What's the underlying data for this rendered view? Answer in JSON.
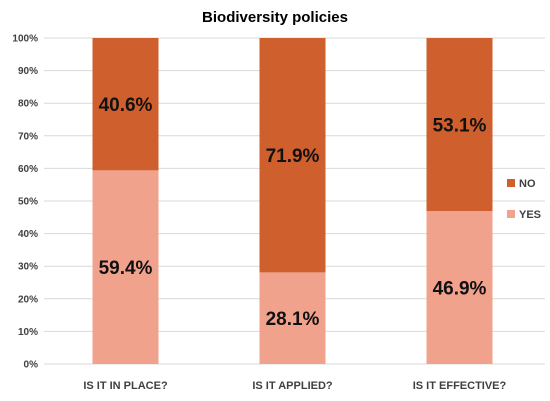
{
  "chart_data": {
    "type": "bar",
    "stacked": true,
    "title": "Biodiversity policies",
    "categories": [
      "IS IT IN PLACE?",
      "IS IT APPLIED?",
      "IS IT EFFECTIVE?"
    ],
    "series": [
      {
        "name": "YES",
        "values": [
          59.4,
          28.1,
          46.9
        ],
        "color": "#f0a28c"
      },
      {
        "name": "NO",
        "values": [
          40.6,
          71.9,
          53.1
        ],
        "color": "#cf5f2c"
      }
    ],
    "data_labels": {
      "YES": [
        "59.4%",
        "28.1%",
        "46.9%"
      ],
      "NO": [
        "40.6%",
        "71.9%",
        "53.1%"
      ]
    },
    "y_ticks": [
      "0%",
      "10%",
      "20%",
      "30%",
      "40%",
      "50%",
      "60%",
      "70%",
      "80%",
      "90%",
      "100%"
    ],
    "ylim": [
      0,
      100
    ],
    "grid": true,
    "legend_position": "right"
  }
}
